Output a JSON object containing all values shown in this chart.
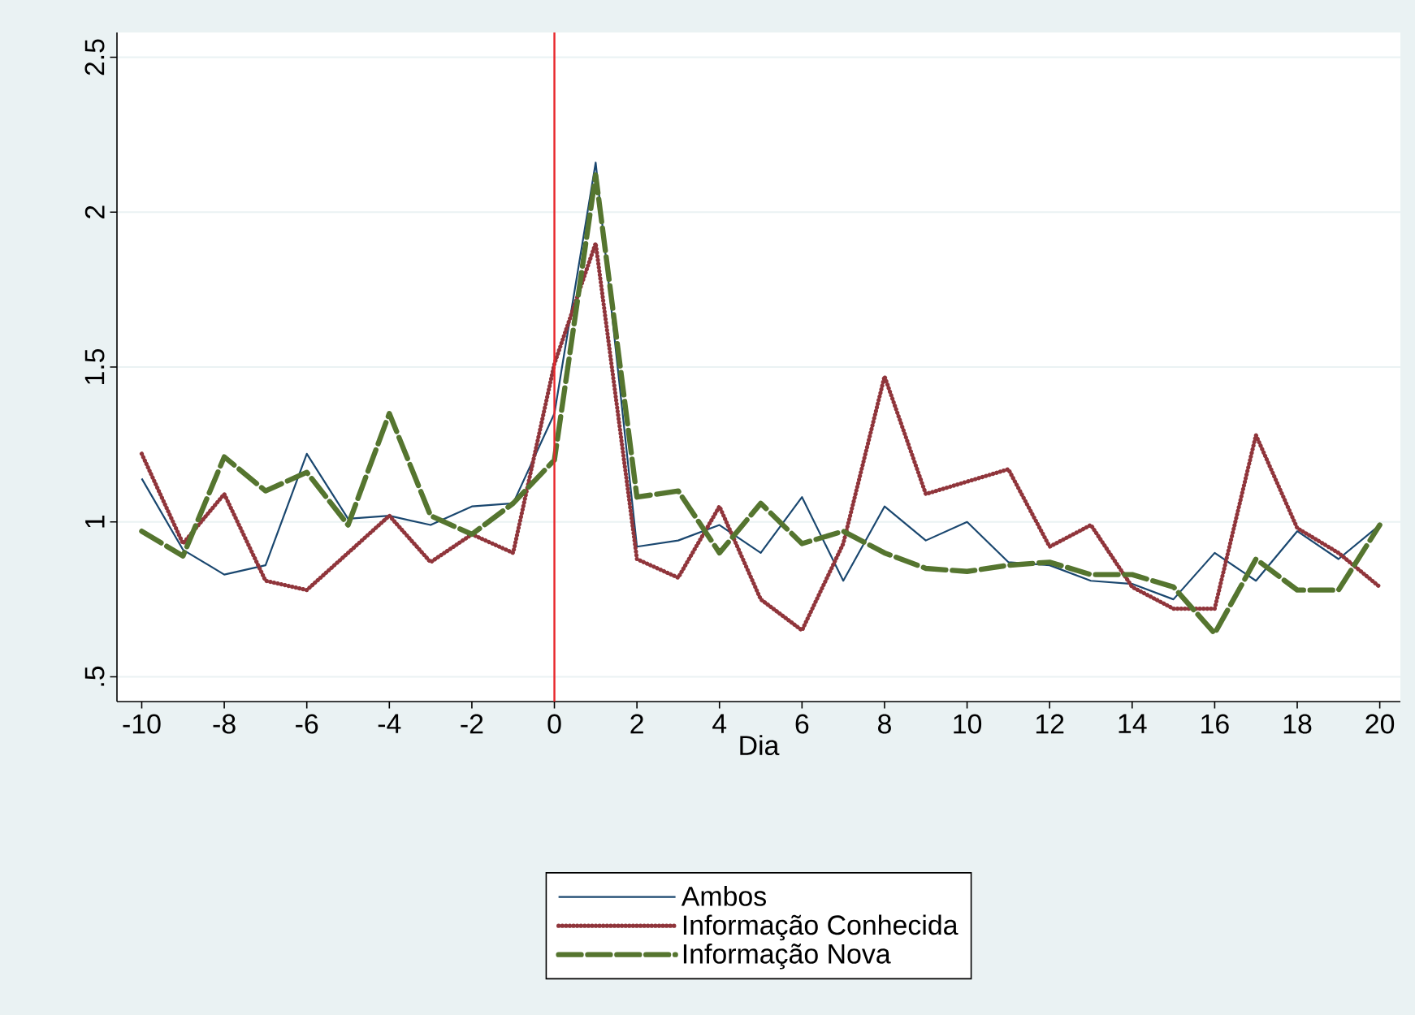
{
  "chart_data": {
    "type": "line",
    "xlabel": "Dia",
    "x": [
      -10,
      -9,
      -8,
      -7,
      -6,
      -5,
      -4,
      -3,
      -2,
      -1,
      0,
      1,
      2,
      3,
      4,
      5,
      6,
      7,
      8,
      9,
      10,
      11,
      12,
      13,
      14,
      15,
      16,
      17,
      18,
      19,
      20
    ],
    "series": [
      {
        "name": "Ambos",
        "color": "#1a476f",
        "line_style": "solid",
        "values": [
          1.14,
          0.91,
          0.83,
          0.86,
          1.22,
          1.01,
          1.02,
          0.99,
          1.05,
          1.06,
          1.35,
          2.16,
          0.92,
          0.94,
          0.99,
          0.9,
          1.08,
          0.81,
          1.05,
          0.94,
          1.0,
          0.87,
          0.86,
          0.81,
          0.8,
          0.75,
          0.9,
          0.81,
          0.97,
          0.88,
          0.99
        ]
      },
      {
        "name": "Informação Conhecida",
        "color": "#90353b",
        "line_style": "dotted",
        "values": [
          1.22,
          0.93,
          1.09,
          0.81,
          0.78,
          0.9,
          1.02,
          0.87,
          0.96,
          0.9,
          1.51,
          1.9,
          0.88,
          0.82,
          1.05,
          0.75,
          0.65,
          0.93,
          1.47,
          1.09,
          1.13,
          1.17,
          0.92,
          0.99,
          0.79,
          0.72,
          0.72,
          1.28,
          0.98,
          0.9,
          0.79
        ]
      },
      {
        "name": "Informação Nova",
        "color": "#55752f",
        "line_style": "dashed",
        "values": [
          0.97,
          0.89,
          1.21,
          1.1,
          1.16,
          0.99,
          1.35,
          1.02,
          0.96,
          1.06,
          1.2,
          2.12,
          1.08,
          1.1,
          0.9,
          1.06,
          0.93,
          0.97,
          0.9,
          0.85,
          0.84,
          0.86,
          0.87,
          0.83,
          0.83,
          0.79,
          0.64,
          0.88,
          0.78,
          0.78,
          0.99
        ]
      }
    ],
    "xlim": [
      -10.6,
      20.5
    ],
    "ylim": [
      0.42,
      2.58
    ],
    "xticks": [
      -10,
      -8,
      -6,
      -4,
      -2,
      0,
      2,
      4,
      6,
      8,
      10,
      12,
      14,
      16,
      18,
      20
    ],
    "yticks": [
      {
        "value": 0.5,
        "label": ".5"
      },
      1,
      1.5,
      2,
      2.5
    ],
    "grid": "y",
    "legend": "bottom",
    "ref_lines": [
      {
        "axis": "x",
        "value": 0,
        "color": "#e8262b"
      }
    ]
  }
}
